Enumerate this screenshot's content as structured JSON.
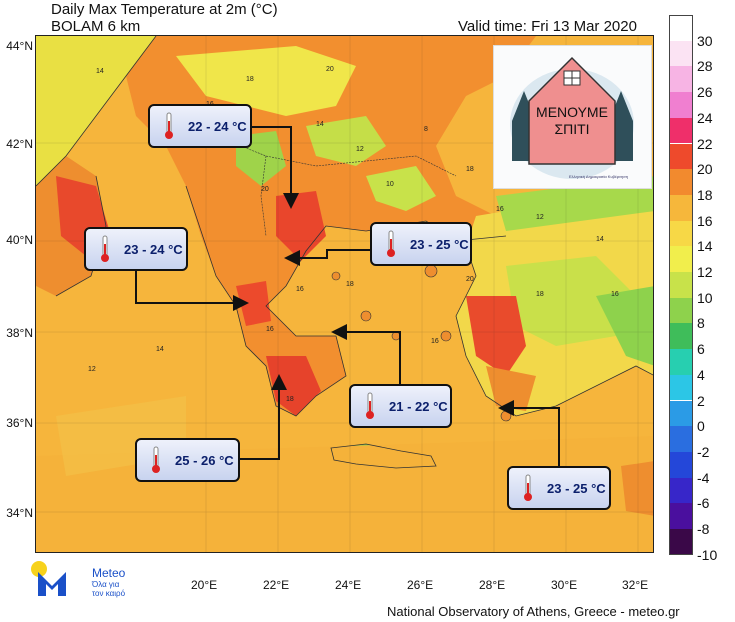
{
  "header": {
    "title": "Daily Max Temperature at 2m (°C)",
    "model": "BOLAM 6 km",
    "valid_time": "Valid time: Fri 13 Mar 2020"
  },
  "axes": {
    "lat_labels": [
      "44°N",
      "42°N",
      "40°N",
      "38°N",
      "36°N",
      "34°N"
    ],
    "lon_labels": [
      "20°E",
      "22°E",
      "24°E",
      "26°E",
      "28°E",
      "30°E",
      "32°E"
    ]
  },
  "colorbar": {
    "ticks": [
      "30",
      "28",
      "26",
      "24",
      "22",
      "20",
      "18",
      "16",
      "14",
      "12",
      "10",
      "8",
      "6",
      "4",
      "2",
      "0",
      "-2",
      "-4",
      "-6",
      "-8",
      "-10"
    ],
    "colors": [
      "#ffffff",
      "#fbe3f3",
      "#f7b4e4",
      "#f07fd0",
      "#ef2f6a",
      "#ee4a2c",
      "#f28a2e",
      "#f6b73b",
      "#f7d846",
      "#f1ee4c",
      "#c8e24a",
      "#8ed24c",
      "#3fbd5a",
      "#27cfb0",
      "#2cc6e6",
      "#2b9be6",
      "#2a6ee0",
      "#2447d9",
      "#3726c9",
      "#4a0f9e",
      "#3a0848"
    ]
  },
  "callouts": [
    {
      "text": "22 - 24 °C",
      "id": "north-greece"
    },
    {
      "text": "23 - 24 °C",
      "id": "west-greece"
    },
    {
      "text": "23 - 25 °C",
      "id": "central-greece"
    },
    {
      "text": "21 - 22 °C",
      "id": "attica"
    },
    {
      "text": "25 - 26 °C",
      "id": "peloponnese"
    },
    {
      "text": "23 - 25 °C",
      "id": "dodecanese"
    }
  ],
  "poster": {
    "text": "ΜΕΝΟΥΜΕ ΣΠΙΤΙ",
    "small_text": "Ελληνική Δημοκρατία Κυβέρνηση"
  },
  "logo": {
    "name": "Meteo",
    "tagline": "Όλα για τον καιρό"
  },
  "footer": "National Observatory of Athens, Greece - meteo.gr",
  "map_values": [
    "14",
    "16",
    "18",
    "20",
    "12",
    "10",
    "8",
    "16",
    "18",
    "14",
    "20",
    "18",
    "16",
    "12",
    "14",
    "16",
    "18",
    "20",
    "16",
    "18",
    "14",
    "12",
    "18",
    "16"
  ]
}
